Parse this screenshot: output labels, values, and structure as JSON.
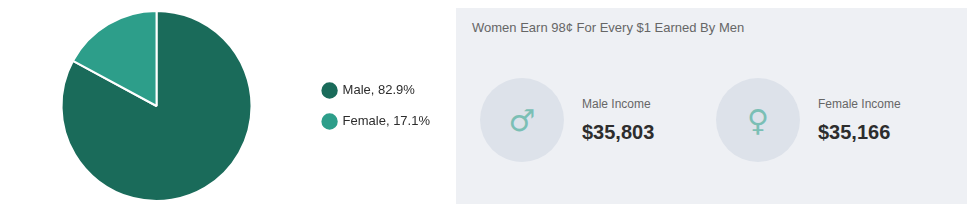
{
  "chart_data": {
    "type": "pie",
    "title": "Women Earn 98¢ For Every $1 Earned By Men",
    "categories": [
      "Male, 82.9%",
      "Female, 17.1%"
    ],
    "values": [
      82.9,
      17.1
    ],
    "colors": [
      "#1a6b5a",
      "#2d9e8a"
    ],
    "legend": "right",
    "annotations": [
      {
        "icon": "♂",
        "label": "Male Income",
        "amount": "$35,803"
      },
      {
        "icon": "♀",
        "label": "Female Income",
        "amount": "$35,166"
      }
    ]
  }
}
